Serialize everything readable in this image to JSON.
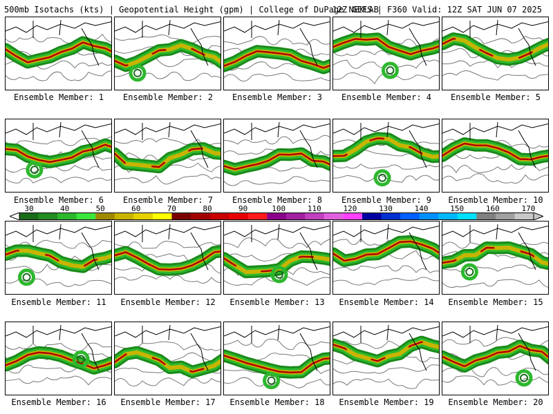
{
  "header": {
    "left": "500mb Isotachs (kts) | Geopotential Height (gpm) | College of DuPage NEXLAB",
    "right": "12Z GEFS | F360 Valid: 12Z SAT JUN 07 2025"
  },
  "panels": [
    {
      "label": "Ensemble Member: 1"
    },
    {
      "label": "Ensemble Member: 2"
    },
    {
      "label": "Ensemble Member: 3"
    },
    {
      "label": "Ensemble Member: 4"
    },
    {
      "label": "Ensemble Member: 5"
    },
    {
      "label": "Ensemble Member: 6"
    },
    {
      "label": "Ensemble Member: 7"
    },
    {
      "label": "Ensemble Member: 8"
    },
    {
      "label": "Ensemble Member: 9"
    },
    {
      "label": "Ensemble Member: 10"
    },
    {
      "label": "Ensemble Member: 11"
    },
    {
      "label": "Ensemble Member: 12"
    },
    {
      "label": "Ensemble Member: 13"
    },
    {
      "label": "Ensemble Member: 14"
    },
    {
      "label": "Ensemble Member: 15"
    },
    {
      "label": "Ensemble Member: 16"
    },
    {
      "label": "Ensemble Member: 17"
    },
    {
      "label": "Ensemble Member: 18"
    },
    {
      "label": "Ensemble Member: 19"
    },
    {
      "label": "Ensemble Member: 20"
    }
  ],
  "colorbar": {
    "ticks": [
      "30",
      "40",
      "50",
      "60",
      "70",
      "80",
      "90",
      "100",
      "110",
      "120",
      "130",
      "140",
      "150",
      "160",
      "170"
    ],
    "colors": [
      "#1a6b1a",
      "#228b22",
      "#2db82d",
      "#3ce63c",
      "#a08b00",
      "#c8b400",
      "#e6d200",
      "#ffff00",
      "#7a0000",
      "#a00000",
      "#c80000",
      "#e60000",
      "#ff1a1a",
      "#8b008b",
      "#a020a0",
      "#c040c0",
      "#e060e0",
      "#ff40ff",
      "#0000a0",
      "#0030d0",
      "#0060ff",
      "#0090ff",
      "#00b8ff",
      "#00e0ff",
      "#808080",
      "#a0a0a0",
      "#c8c8c8"
    ]
  }
}
